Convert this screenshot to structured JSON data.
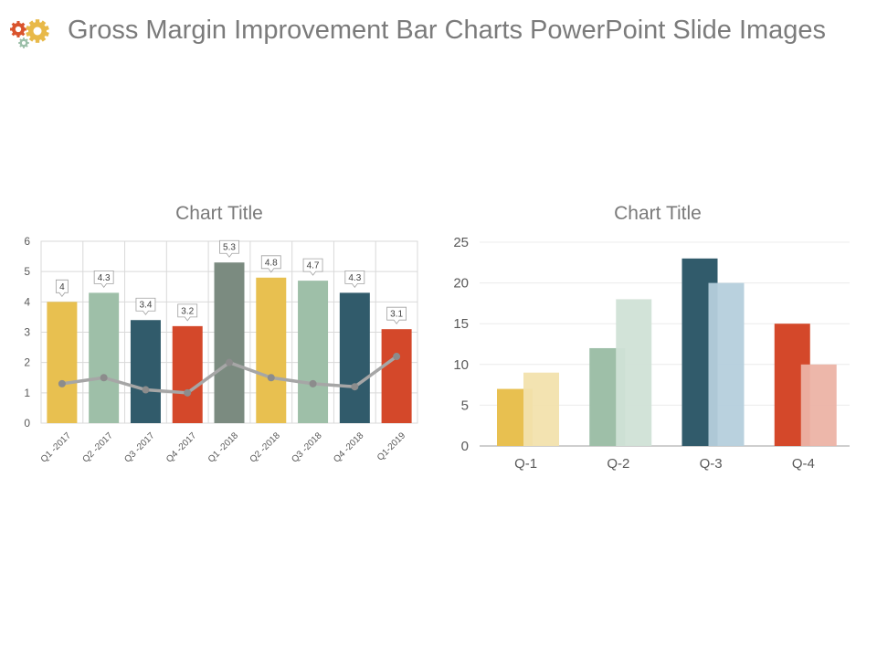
{
  "header": {
    "title": "Gross Margin Improvement Bar Charts PowerPoint Slide Images",
    "logo_icon": "gears-icon",
    "logo_colors": [
      "#d9532c",
      "#e8b949",
      "#9cbfa9"
    ]
  },
  "chart_data": [
    {
      "type": "bar",
      "title": "Chart Title",
      "categories": [
        "Q1 -2017",
        "Q2 -2017",
        "Q3 -2017",
        "Q4 -2017",
        "Q1 -2018",
        "Q2 -2018",
        "Q3 -2018",
        "Q4 -2018",
        "Q1-2019"
      ],
      "values": [
        4,
        4.3,
        3.4,
        3.2,
        5.3,
        4.8,
        4.7,
        4.3,
        3.1
      ],
      "data_labels": [
        "4",
        "4.3",
        "3.4",
        "3.2",
        "5.3",
        "4.8",
        "4.7",
        "4.3",
        "3.1"
      ],
      "bar_colors": [
        "#e8c050",
        "#9ebfa8",
        "#315b6b",
        "#d4482a",
        "#7b8b80",
        "#e8c050",
        "#9ebfa8",
        "#315b6b",
        "#d4482a"
      ],
      "line_series": {
        "type": "line",
        "values": [
          1.3,
          1.5,
          1.1,
          1.0,
          2.0,
          1.5,
          1.3,
          1.2,
          2.2
        ],
        "color": "#a6a6a6"
      },
      "ylim": [
        0,
        6
      ],
      "yticks": [
        0,
        1,
        2,
        3,
        4,
        5,
        6
      ],
      "grid": true,
      "xlabel": "",
      "ylabel": ""
    },
    {
      "type": "bar",
      "title": "Chart Title",
      "categories": [
        "Q-1",
        "Q-2",
        "Q-3",
        "Q-4"
      ],
      "series": [
        {
          "values": [
            7,
            12,
            23,
            15
          ],
          "colors": [
            "#e8c050",
            "#9ebfa8",
            "#315b6b",
            "#d4482a"
          ]
        },
        {
          "values": [
            9,
            18,
            20,
            10
          ],
          "colors": [
            "#f2e1ad",
            "#d0e1d6",
            "#b5cfdc",
            "#ecb3a5"
          ]
        }
      ],
      "ylim": [
        0,
        25
      ],
      "yticks": [
        0,
        5,
        10,
        15,
        20,
        25
      ],
      "grid": true,
      "xlabel": "",
      "ylabel": ""
    }
  ]
}
